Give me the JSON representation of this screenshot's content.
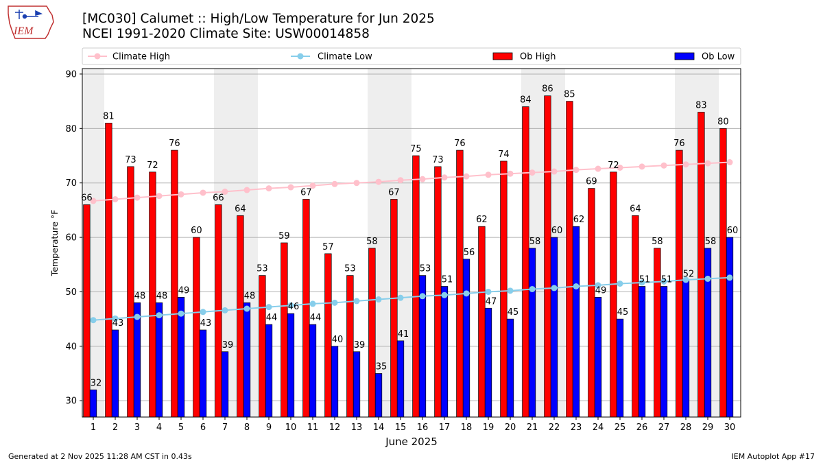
{
  "header": {
    "title_line1": "[MC030] Calumet  :: High/Low Temperature for Jun 2025",
    "title_line2": "NCEI 1991-2020 Climate Site: USW00014858"
  },
  "logo": {
    "text": "IEM",
    "icon": "iowa-state-outline-logo"
  },
  "footer": {
    "left": "Generated at 2 Nov 2025 11:28 AM CST in 0.43s",
    "right": "IEM Autoplot App #17"
  },
  "colors": {
    "ob_high": "#ff0000",
    "ob_low": "#0000ff",
    "climate_high": "#ffc0cb",
    "climate_low": "#87ceeb",
    "weekend_shade": "#eeeeee",
    "grid": "#b0b0b0"
  },
  "chart_data": {
    "type": "bar",
    "title": "[MC030] Calumet  :: High/Low Temperature for Jun 2025",
    "subtitle": "NCEI 1991-2020 Climate Site: USW00014858",
    "xlabel": "June 2025",
    "ylabel": "Temperature °F",
    "ylim": [
      27,
      91
    ],
    "yticks": [
      30,
      40,
      50,
      60,
      70,
      80,
      90
    ],
    "grid": true,
    "legend_position": "top",
    "categories": [
      "1",
      "2",
      "3",
      "4",
      "5",
      "6",
      "7",
      "8",
      "9",
      "10",
      "11",
      "12",
      "13",
      "14",
      "15",
      "16",
      "17",
      "18",
      "19",
      "20",
      "21",
      "22",
      "23",
      "24",
      "25",
      "26",
      "27",
      "28",
      "29",
      "30"
    ],
    "shaded_days": [
      1,
      7,
      8,
      14,
      15,
      21,
      22,
      28,
      29
    ],
    "legend": [
      "Climate High",
      "Climate Low",
      "Ob High",
      "Ob Low"
    ],
    "series": [
      {
        "name": "Ob High",
        "kind": "bar",
        "values": [
          66,
          81,
          73,
          72,
          76,
          60,
          66,
          64,
          53,
          59,
          67,
          57,
          53,
          58,
          67,
          75,
          73,
          76,
          62,
          74,
          84,
          86,
          85,
          69,
          72,
          64,
          58,
          76,
          83,
          80
        ]
      },
      {
        "name": "Ob Low",
        "kind": "bar",
        "values": [
          32,
          43,
          48,
          48,
          49,
          43,
          39,
          48,
          44,
          46,
          44,
          40,
          39,
          35,
          41,
          53,
          51,
          56,
          47,
          45,
          58,
          60,
          62,
          49,
          45,
          51,
          51,
          52,
          58,
          60
        ]
      },
      {
        "name": "Climate High",
        "kind": "line",
        "values": [
          66.7,
          67.0,
          67.3,
          67.6,
          67.9,
          68.2,
          68.4,
          68.7,
          69.0,
          69.2,
          69.5,
          69.8,
          70.0,
          70.2,
          70.5,
          70.7,
          71.0,
          71.2,
          71.5,
          71.7,
          71.9,
          72.1,
          72.4,
          72.6,
          72.8,
          73.0,
          73.2,
          73.4,
          73.6,
          73.8
        ]
      },
      {
        "name": "Climate Low",
        "kind": "line",
        "values": [
          44.8,
          45.1,
          45.4,
          45.7,
          46.0,
          46.3,
          46.6,
          46.9,
          47.2,
          47.5,
          47.8,
          48.0,
          48.3,
          48.6,
          48.9,
          49.2,
          49.4,
          49.7,
          50.0,
          50.2,
          50.5,
          50.7,
          51.0,
          51.2,
          51.5,
          51.7,
          51.9,
          52.2,
          52.4,
          52.6
        ]
      }
    ]
  }
}
